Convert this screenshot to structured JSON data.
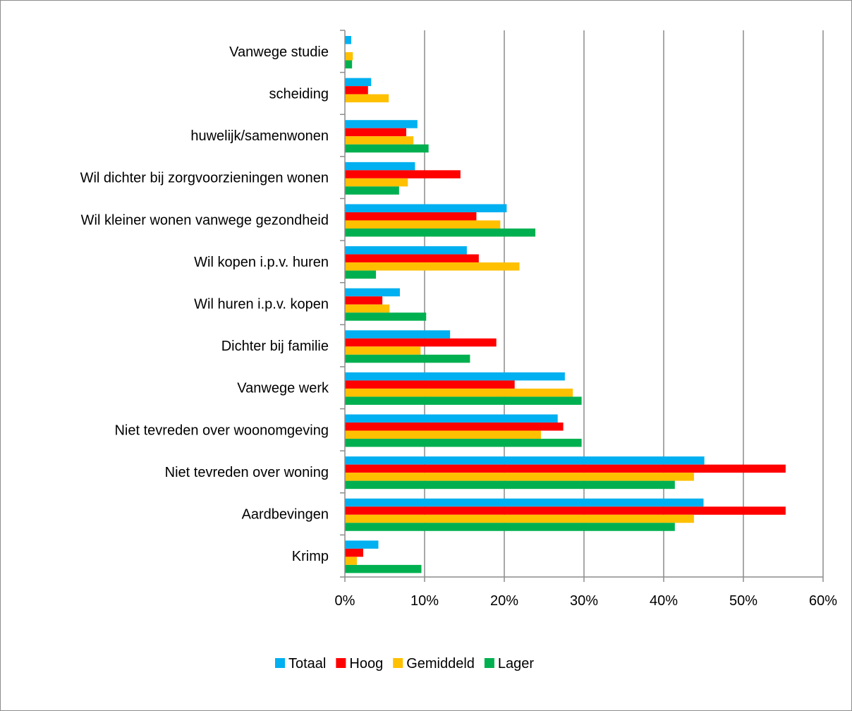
{
  "chart_data": {
    "type": "bar",
    "orientation": "horizontal",
    "title": "",
    "xlabel": "",
    "ylabel": "",
    "xlim": [
      0,
      60
    ],
    "x_ticks": [
      "0%",
      "10%",
      "20%",
      "30%",
      "40%",
      "50%",
      "60%"
    ],
    "grid": "vertical",
    "legend_position": "bottom",
    "categories": [
      "Vanwege studie",
      "scheiding",
      "huwelijk/samenwonen",
      "Wil dichter bij zorgvoorzieningen wonen",
      "Wil kleiner wonen vanwege gezondheid",
      "Wil kopen i.p.v. huren",
      "Wil huren i.p.v. kopen",
      "Dichter bij familie",
      "Vanwege werk",
      "Niet tevreden over woonomgeving",
      "Niet tevreden over woning",
      "Aardbevingen",
      "Krimp"
    ],
    "series": [
      {
        "name": "Totaal",
        "color": "#00B0F0",
        "values": [
          0.8,
          3.3,
          9.1,
          8.8,
          20.3,
          15.3,
          6.9,
          13.2,
          27.6,
          26.7,
          45.1,
          45.0,
          4.2
        ]
      },
      {
        "name": "Hoog",
        "color": "#FF0000",
        "values": [
          0,
          2.9,
          7.7,
          14.5,
          16.5,
          16.8,
          4.7,
          19.0,
          21.3,
          27.4,
          55.3,
          55.3,
          2.3
        ]
      },
      {
        "name": "Gemiddeld",
        "color": "#FFC000",
        "values": [
          1.0,
          5.5,
          8.6,
          7.9,
          19.5,
          21.9,
          5.6,
          9.5,
          28.6,
          24.6,
          43.8,
          43.8,
          1.5
        ]
      },
      {
        "name": "Lager",
        "color": "#00B050",
        "values": [
          0.9,
          0,
          10.5,
          6.8,
          23.9,
          3.9,
          10.2,
          15.7,
          29.7,
          29.7,
          41.4,
          41.4,
          9.6
        ]
      }
    ]
  }
}
